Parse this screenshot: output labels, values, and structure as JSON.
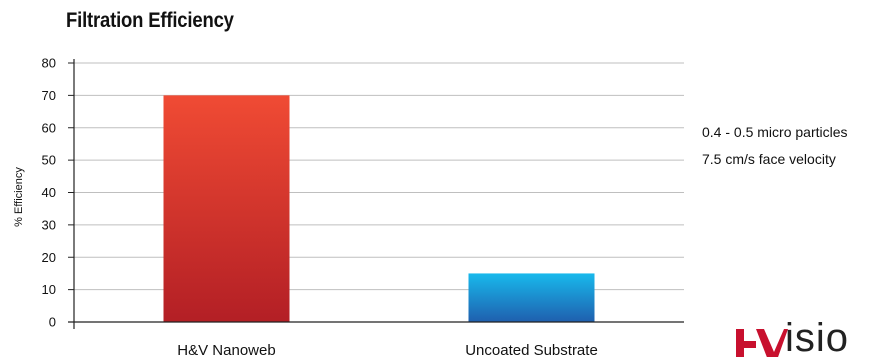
{
  "chart_data": {
    "type": "bar",
    "title": "Filtration Efficiency",
    "ylabel": "% Efficiency",
    "xlabel": "",
    "categories": [
      "H&V Nanoweb",
      "Uncoated Substrate"
    ],
    "values": [
      70,
      15
    ],
    "ylim": [
      0,
      80
    ],
    "yticks": [
      0,
      10,
      20,
      30,
      40,
      50,
      60,
      70,
      80
    ],
    "grid": true,
    "bar_colors": [
      {
        "top": "#f04b34",
        "bottom": "#b31f25"
      },
      {
        "top": "#18b9ec",
        "bottom": "#1f5fae"
      }
    ],
    "annotations": [
      "0.4 - 0.5 micro particles",
      "7.5 cm/s face velocity"
    ]
  },
  "logo": {
    "text": "isio",
    "mark_color": "#c8102e"
  }
}
